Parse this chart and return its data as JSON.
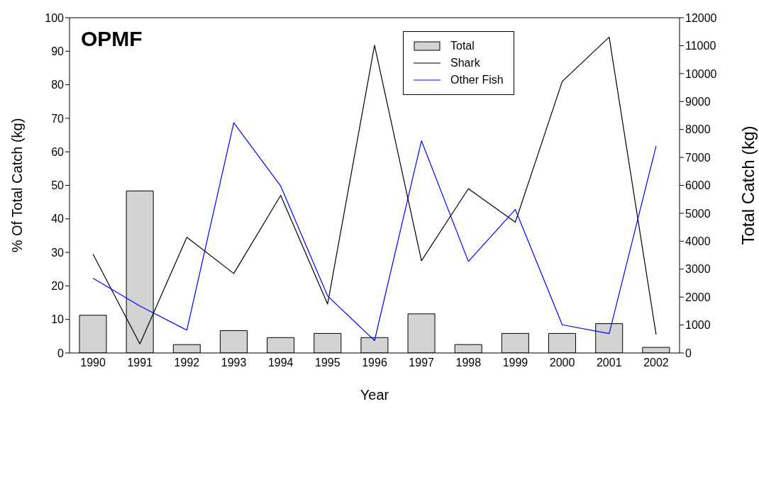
{
  "chart_data": {
    "type": "line",
    "title": "OPMF",
    "xlabel": "Year",
    "ylabel": "% Of Total Catch (kg)",
    "y2label": "Total Catch (kg)",
    "categories": [
      "1990",
      "1991",
      "1992",
      "1993",
      "1994",
      "1995",
      "1996",
      "1997",
      "1998",
      "1999",
      "2000",
      "2001",
      "2002"
    ],
    "series": [
      {
        "name": "Total",
        "type": "bar",
        "axis": "y2",
        "color": "#d3d3d3",
        "values": [
          1350,
          5800,
          300,
          800,
          550,
          700,
          550,
          1400,
          300,
          700,
          700,
          1050,
          200
        ]
      },
      {
        "name": "Shark",
        "color": "#000000",
        "values": [
          29.5,
          2.7,
          34.5,
          23.7,
          47,
          14.6,
          91.8,
          27.5,
          49,
          39,
          81,
          94.2,
          5.5
        ]
      },
      {
        "name": "Other Fish",
        "color": "#0000ff",
        "values": [
          22.3,
          14,
          6.8,
          68.7,
          49.8,
          17,
          3.7,
          63.3,
          27.3,
          42.8,
          8.4,
          5.8,
          61.7
        ]
      }
    ],
    "ylim": [
      0,
      100
    ],
    "yticks": [
      0,
      10,
      20,
      30,
      40,
      50,
      60,
      70,
      80,
      90,
      100
    ],
    "y2lim": [
      0,
      12000
    ],
    "y2ticks": [
      0,
      1000,
      2000,
      3000,
      4000,
      5000,
      6000,
      7000,
      8000,
      9000,
      10000,
      11000,
      12000
    ],
    "grid": false,
    "legend": "top",
    "marker": "none",
    "line_style": "solid"
  }
}
